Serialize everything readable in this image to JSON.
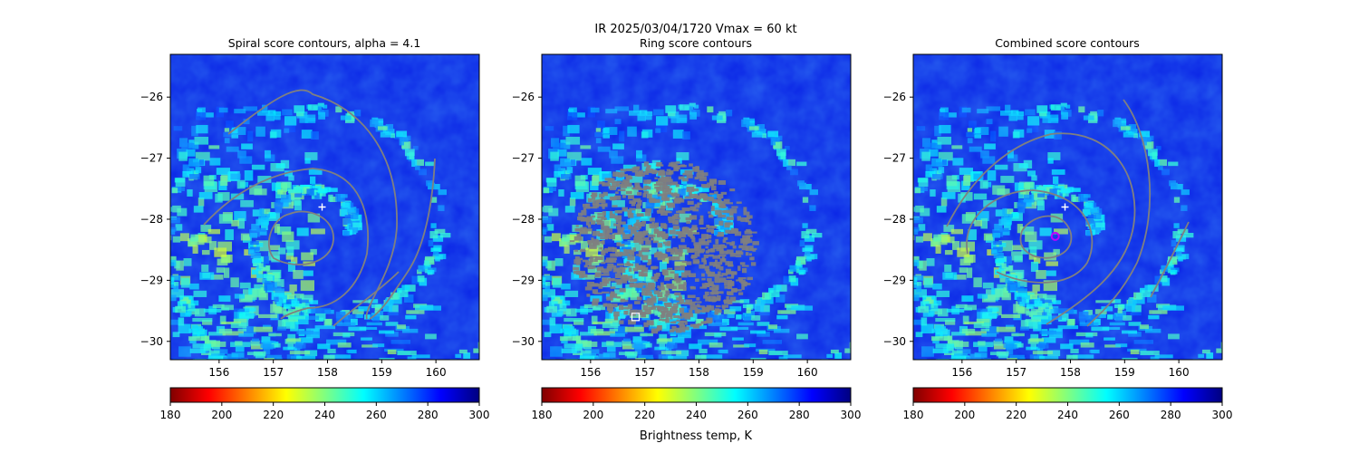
{
  "figure": {
    "suptitle": "IR  2025/03/04/1720    Vmax = 60 kt",
    "colorbar_label": "Brightness temp, K"
  },
  "colormap": {
    "name": "jet_r",
    "stops": [
      "#800000",
      "#ff0000",
      "#ff8000",
      "#ffff00",
      "#80ff80",
      "#00ffff",
      "#0080ff",
      "#0000ff",
      "#000080"
    ]
  },
  "colors": {
    "contour": "#808080",
    "marker": "#ffffff",
    "combined_marker": "#c000ff",
    "background_ocean": "#0a24e6"
  },
  "chart_data": [
    {
      "type": "heatmap",
      "title": "Spiral score contours, alpha =  4.1",
      "xlim": [
        155.1,
        160.8
      ],
      "ylim": [
        -30.3,
        -25.3
      ],
      "xticks": [
        156,
        157,
        158,
        159,
        160
      ],
      "yticks": [
        -26,
        -27,
        -28,
        -29,
        -30
      ],
      "colorbar": {
        "range": [
          180,
          300
        ],
        "ticks": [
          180,
          200,
          220,
          240,
          260,
          280,
          300
        ]
      },
      "center_marker": {
        "type": "plus",
        "lon": 157.9,
        "lat": -27.8
      }
    },
    {
      "type": "heatmap",
      "title": "Ring score contours",
      "xlim": [
        155.1,
        160.8
      ],
      "ylim": [
        -30.3,
        -25.3
      ],
      "xticks": [
        156,
        157,
        158,
        159,
        160
      ],
      "yticks": [
        -26,
        -27,
        -28,
        -29,
        -30
      ],
      "colorbar": {
        "range": [
          180,
          300
        ],
        "ticks": [
          180,
          200,
          220,
          240,
          260,
          280,
          300
        ]
      },
      "center_marker": {
        "type": "square",
        "lon": 156.83,
        "lat": -29.6
      }
    },
    {
      "type": "heatmap",
      "title": "Combined score contours",
      "xlim": [
        155.1,
        160.8
      ],
      "ylim": [
        -30.3,
        -25.3
      ],
      "xticks": [
        156,
        157,
        158,
        159,
        160
      ],
      "yticks": [
        -26,
        -27,
        -28,
        -29,
        -30
      ],
      "colorbar": {
        "range": [
          180,
          300
        ],
        "ticks": [
          180,
          200,
          220,
          240,
          260,
          280,
          300
        ]
      },
      "center_marker": {
        "type": "plus",
        "lon": 157.9,
        "lat": -27.8
      },
      "combined_marker": {
        "type": "circle",
        "lon": 157.72,
        "lat": -28.28
      }
    }
  ]
}
